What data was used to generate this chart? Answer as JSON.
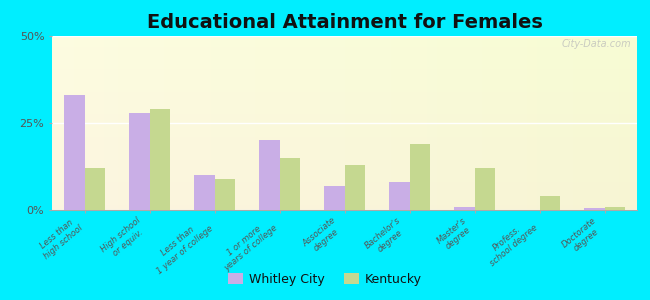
{
  "title": "Educational Attainment for Females",
  "categories": [
    "Less than\nhigh school",
    "High school\nor equiv.",
    "Less than\n1 year of college",
    "1 or more\nyears of college",
    "Associate\ndegree",
    "Bachelor's\ndegree",
    "Master's\ndegree",
    "Profess.\nschool degree",
    "Doctorate\ndegree"
  ],
  "whitley_city": [
    33,
    28,
    10,
    20,
    7,
    8,
    1,
    0,
    0.5
  ],
  "kentucky": [
    12,
    29,
    9,
    15,
    13,
    19,
    12,
    4,
    1
  ],
  "whitley_color": "#c9aee6",
  "kentucky_color": "#c5d890",
  "bg_color": "#00eeff",
  "ylim": [
    0,
    50
  ],
  "yticks": [
    0,
    25,
    50
  ],
  "ytick_labels": [
    "0%",
    "25%",
    "50%"
  ],
  "bar_width": 0.32,
  "title_fontsize": 14,
  "watermark": "City-Data.com"
}
